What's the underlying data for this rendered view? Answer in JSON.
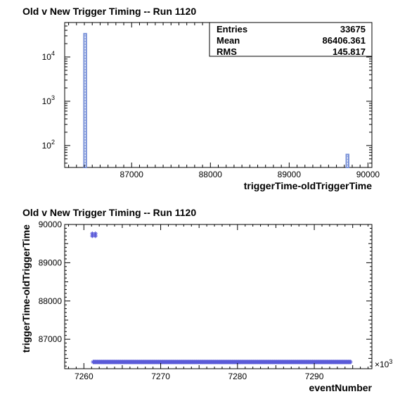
{
  "chart_data": [
    {
      "type": "bar",
      "title": "Old v New Trigger Timing -- Run 1120",
      "xlabel": "triggerTime-oldTriggerTime",
      "ylabel": "",
      "xlim": [
        86150,
        90050
      ],
      "ylim": [
        32,
        60000
      ],
      "log_y": true,
      "x_tick_labels": [
        "87000",
        "88000",
        "89000",
        "90000"
      ],
      "y_tick_labels": [
        {
          "base": "10",
          "exp": "2"
        },
        {
          "base": "10",
          "exp": "3"
        },
        {
          "base": "10",
          "exp": "4"
        }
      ],
      "bins": [
        {
          "x0": 86390,
          "x1": 86430,
          "count": 33600
        },
        {
          "x0": 89720,
          "x1": 89760,
          "count": 63
        }
      ],
      "bar_color": "#7b93d8",
      "stats_box": {
        "position": "top-right",
        "rows": [
          {
            "label": "Entries",
            "value": "33675"
          },
          {
            "label": "Mean",
            "value": "86406.361"
          },
          {
            "label": "RMS",
            "value": "145.817"
          }
        ]
      }
    },
    {
      "type": "scatter",
      "title": "Old v New Trigger Timing -- Run 1120",
      "xlabel": "eventNumber",
      "ylabel": "triggerTime-oldTriggerTime",
      "xlim": [
        7257.5,
        7297.5
      ],
      "ylim": [
        86230,
        90000
      ],
      "x_tick_labels": [
        "7260",
        "7270",
        "7280",
        "7290"
      ],
      "y_tick_labels": [
        "87000",
        "88000",
        "89000",
        "90000"
      ],
      "x_multiplier": {
        "base": "×10",
        "exp": "3"
      },
      "marker_color": "#5a5ad8",
      "clusters": [
        {
          "x": [
            7261.1,
            7261.5
          ],
          "y": [
            89700,
            89760
          ],
          "note": ""
        },
        {
          "x_range": [
            7261.2,
            7294.8
          ],
          "y": 86406
        }
      ]
    }
  ]
}
